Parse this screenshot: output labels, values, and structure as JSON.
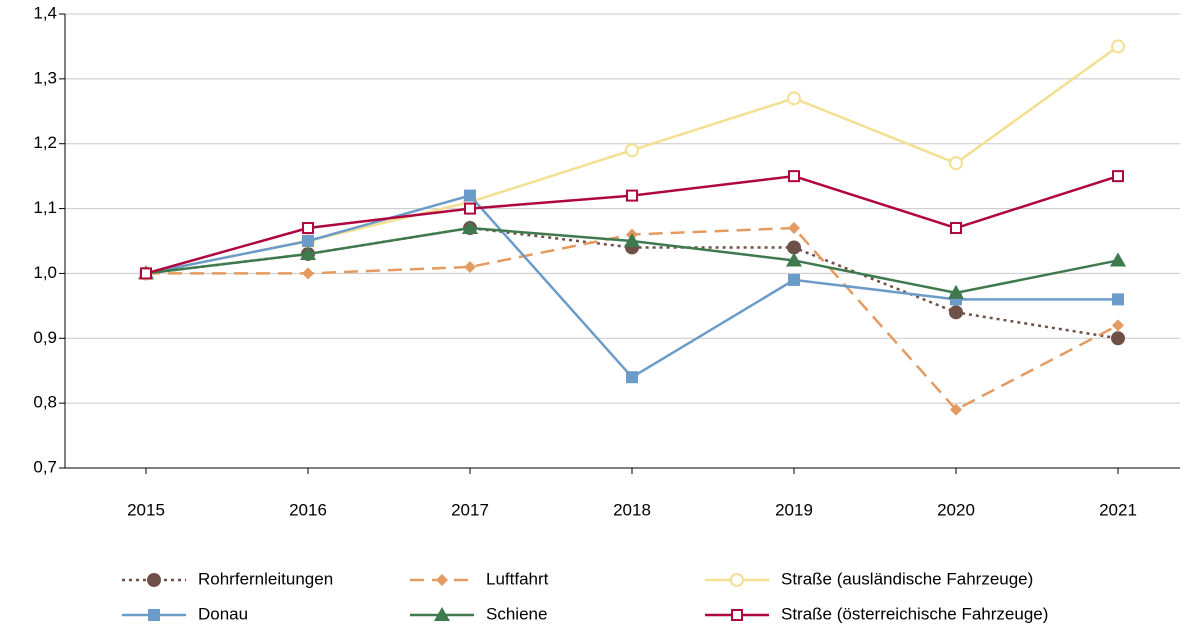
{
  "chart_data": {
    "type": "line",
    "categories": [
      "2015",
      "2016",
      "2017",
      "2018",
      "2019",
      "2020",
      "2021"
    ],
    "ylim": [
      0.7,
      1.4
    ],
    "yticks": [
      {
        "value": 0.7,
        "label": "0,7"
      },
      {
        "value": 0.8,
        "label": "0,8"
      },
      {
        "value": 0.9,
        "label": "0,9"
      },
      {
        "value": 1.0,
        "label": "1,0"
      },
      {
        "value": 1.1,
        "label": "1,1"
      },
      {
        "value": 1.2,
        "label": "1,2"
      },
      {
        "value": 1.3,
        "label": "1,3"
      },
      {
        "value": 1.4,
        "label": "1,4"
      }
    ],
    "grid": true,
    "legend": "bottom",
    "series": [
      {
        "name": "Rohrfernleitungen",
        "color": "#6e5048",
        "dash": "dotted",
        "marker": "circle",
        "values": [
          1.0,
          1.03,
          1.07,
          1.04,
          1.04,
          0.94,
          0.9
        ]
      },
      {
        "name": "Luftfahrt",
        "color": "#e39b62",
        "dash": "dashed",
        "marker": "diamond",
        "values": [
          1.0,
          1.0,
          1.01,
          1.06,
          1.07,
          0.79,
          0.92
        ]
      },
      {
        "name": "Straße (ausländische Fahrzeuge)",
        "color": "#f3df92",
        "dash": "solid",
        "marker": "circle-open",
        "values": [
          1.0,
          1.05,
          1.11,
          1.19,
          1.27,
          1.17,
          1.35
        ]
      },
      {
        "name": "Donau",
        "color": "#6b9bc8",
        "dash": "solid",
        "marker": "square",
        "values": [
          1.0,
          1.05,
          1.12,
          0.84,
          0.99,
          0.96,
          0.96
        ]
      },
      {
        "name": "Schiene",
        "color": "#3f7a4f",
        "dash": "solid",
        "marker": "triangle",
        "values": [
          1.0,
          1.03,
          1.07,
          1.05,
          1.02,
          0.97,
          1.02
        ]
      },
      {
        "name": "Straße (österreichische Fahrzeuge)",
        "color": "#b0063f",
        "dash": "solid",
        "marker": "square-open",
        "values": [
          1.0,
          1.07,
          1.1,
          1.12,
          1.15,
          1.07,
          1.15
        ]
      }
    ]
  }
}
